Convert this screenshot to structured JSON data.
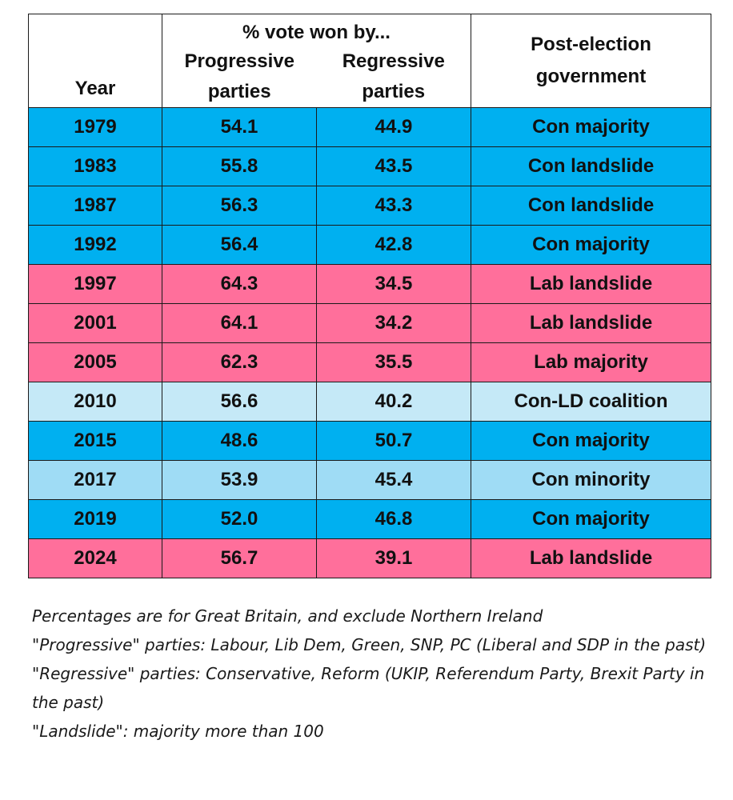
{
  "header": {
    "year": "Year",
    "vote_group": "% vote won by...",
    "progressive_line1": "Progressive",
    "progressive_line2": "parties",
    "regressive_line1": "Regressive",
    "regressive_line2": "parties",
    "government_line1": "Post-election",
    "government_line2": "government"
  },
  "colors": {
    "conservative": "#00b0f0",
    "labour": "#ff6f9b",
    "coalition": "#c5e9f7",
    "minority": "#9fdcf5"
  },
  "rows": [
    {
      "year": "1979",
      "progressive": "54.1",
      "regressive": "44.9",
      "government": "Con majority",
      "party": "con"
    },
    {
      "year": "1983",
      "progressive": "55.8",
      "regressive": "43.5",
      "government": "Con landslide",
      "party": "con"
    },
    {
      "year": "1987",
      "progressive": "56.3",
      "regressive": "43.3",
      "government": "Con landslide",
      "party": "con"
    },
    {
      "year": "1992",
      "progressive": "56.4",
      "regressive": "42.8",
      "government": "Con majority",
      "party": "con"
    },
    {
      "year": "1997",
      "progressive": "64.3",
      "regressive": "34.5",
      "government": "Lab landslide",
      "party": "lab"
    },
    {
      "year": "2001",
      "progressive": "64.1",
      "regressive": "34.2",
      "government": "Lab landslide",
      "party": "lab"
    },
    {
      "year": "2005",
      "progressive": "62.3",
      "regressive": "35.5",
      "government": "Lab majority",
      "party": "lab"
    },
    {
      "year": "2010",
      "progressive": "56.6",
      "regressive": "40.2",
      "government": "Con-LD coalition",
      "party": "coalition"
    },
    {
      "year": "2015",
      "progressive": "48.6",
      "regressive": "50.7",
      "government": "Con majority",
      "party": "con"
    },
    {
      "year": "2017",
      "progressive": "53.9",
      "regressive": "45.4",
      "government": "Con minority",
      "party": "minority"
    },
    {
      "year": "2019",
      "progressive": "52.0",
      "regressive": "46.8",
      "government": "Con majority",
      "party": "con"
    },
    {
      "year": "2024",
      "progressive": "56.7",
      "regressive": "39.1",
      "government": "Lab landslide",
      "party": "lab"
    }
  ],
  "notes": {
    "note1": "Percentages are for Great Britain, and exclude Northern Ireland",
    "note2": "\"Progressive\"  parties: Labour, Lib Dem, Green, SNP, PC (Liberal and SDP in the past)",
    "note3": "\"Regressive\" parties: Conservative, Reform (UKIP, Referendum Party, Brexit Party in the past)",
    "note4": "\"Landslide\": majority more than 100"
  }
}
